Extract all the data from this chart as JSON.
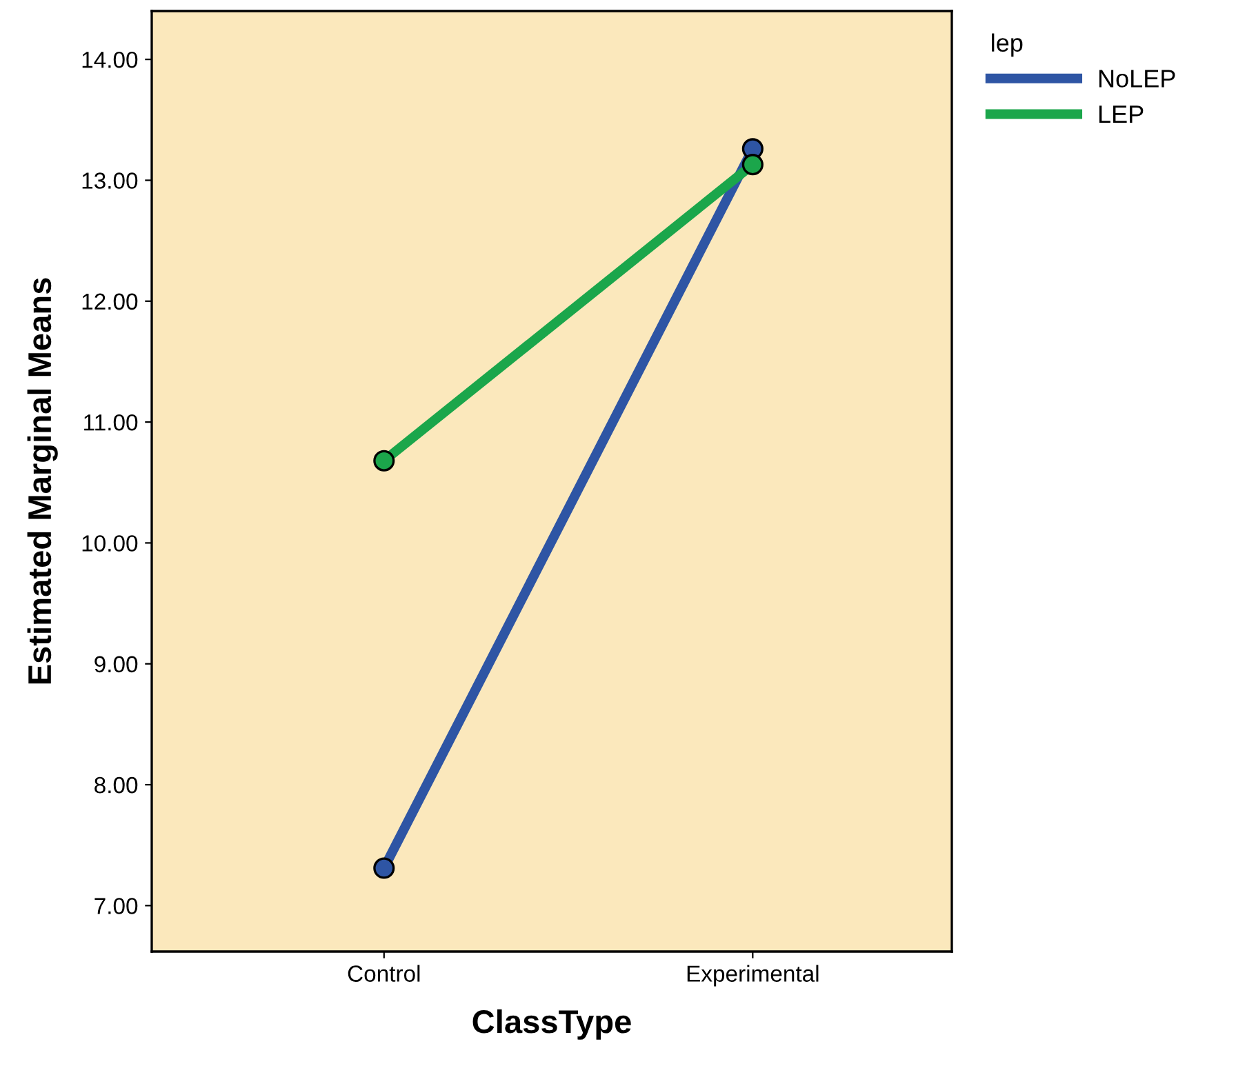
{
  "chart_data": {
    "type": "line",
    "xlabel": "ClassType",
    "ylabel": "Estimated Marginal Means",
    "legend_title": "lep",
    "categories": [
      "Control",
      "Experimental"
    ],
    "series": [
      {
        "name": "NoLEP",
        "color": "#2e55a4",
        "values": [
          7.31,
          13.26
        ]
      },
      {
        "name": "LEP",
        "color": "#1ba64b",
        "values": [
          10.68,
          13.13
        ]
      }
    ],
    "ylim": [
      6.62,
      14.4
    ],
    "yticks": [
      {
        "value": 7,
        "label": "7.00"
      },
      {
        "value": 8,
        "label": "8.00"
      },
      {
        "value": 9,
        "label": "9.00"
      },
      {
        "value": 10,
        "label": "10.00"
      },
      {
        "value": 11,
        "label": "11.00"
      },
      {
        "value": 12,
        "label": "12.00"
      },
      {
        "value": 13,
        "label": "13.00"
      },
      {
        "value": 14,
        "label": "14.00"
      }
    ],
    "marker": "circle",
    "line_style": "solid",
    "legend": "top right",
    "grid": false
  }
}
